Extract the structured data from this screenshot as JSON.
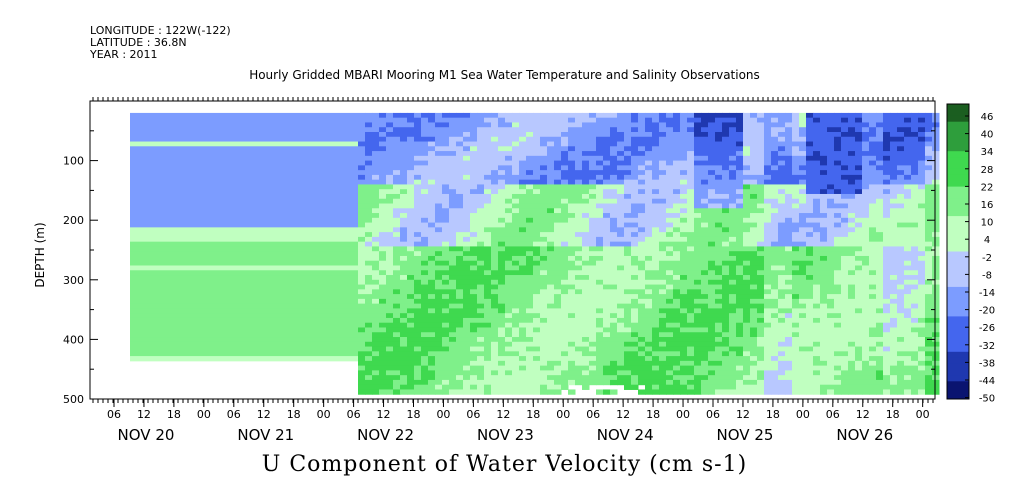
{
  "header": {
    "longitude": "LONGITUDE : 122W(-122)",
    "latitude": "LATITUDE : 36.8N",
    "year": "YEAR : 2011"
  },
  "chart_data": {
    "type": "heatmap",
    "title": "Hourly Gridded MBARI Mooring M1 Sea Water Temperature and Salinity Observations",
    "xlabel": "U Component of Water Velocity (cm s-1)",
    "ylabel": "DEPTH (m)",
    "y_range": [
      0,
      500
    ],
    "y_ticks": [
      100,
      200,
      300,
      400,
      500
    ],
    "y_reversed": true,
    "x_hour_ticks": [
      "06",
      "12",
      "18",
      "00",
      "06",
      "12",
      "18",
      "00",
      "06",
      "12",
      "18",
      "00",
      "06",
      "12",
      "18",
      "00",
      "06",
      "12",
      "18",
      "00",
      "06",
      "12",
      "18",
      "00",
      "06",
      "12",
      "18",
      "00"
    ],
    "x_day_labels": [
      "NOV 20",
      "NOV 21",
      "NOV 22",
      "NOV 23",
      "NOV 24",
      "NOV 25",
      "NOV 26"
    ],
    "colorbar_labels": [
      "46",
      "40",
      "34",
      "28",
      "22",
      "16",
      "10",
      "4",
      "-2",
      "-8",
      "-14",
      "-20",
      "-26",
      "-32",
      "-38",
      "-44",
      "-50"
    ],
    "colorbar_range": [
      -50,
      50
    ],
    "colorbar_colors": [
      "#1b5e20",
      "#2e9e3c",
      "#3fd94f",
      "#7ff08a",
      "#c0ffc0",
      "#b8c8ff",
      "#7c9cff",
      "#4466ee",
      "#1f38b0",
      "#0a1470"
    ]
  }
}
